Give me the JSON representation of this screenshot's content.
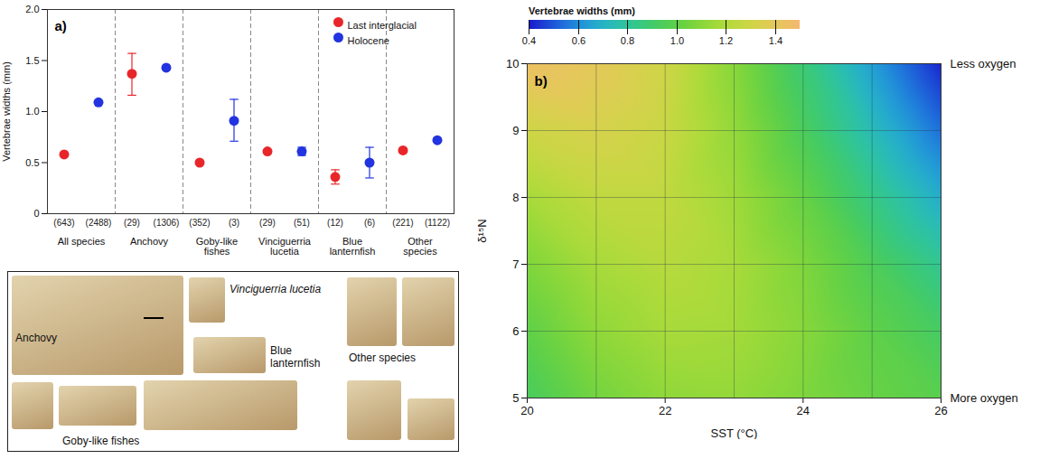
{
  "chart_data": [
    {
      "type": "scatter",
      "panel_label": "a)",
      "categories": [
        "All species",
        "Anchovy",
        "Goby-like fishes",
        "Vinciguerria lucetia",
        "Blue lanternfish",
        "Other species"
      ],
      "ylabel": "Vertebrae widths (mm)",
      "ylim": [
        0,
        2
      ],
      "yticks": [
        0,
        0.5,
        {
          "value": 1,
          "label": "1.0"
        },
        1.5,
        {
          "value": 2,
          "label": "2.0"
        }
      ],
      "legend": "top-right",
      "series": [
        {
          "name": "Last interglacial",
          "color": "#e8262a",
          "marker": "circle",
          "values": [
            0.58,
            1.37,
            0.5,
            0.61,
            0.36,
            0.62
          ],
          "error_low": [
            null,
            1.16,
            null,
            null,
            0.29,
            null
          ],
          "error_high": [
            null,
            1.57,
            null,
            null,
            0.43,
            null
          ],
          "n_labels": [
            "(643)",
            "(29)",
            "(352)",
            "(29)",
            "(12)",
            "(221)"
          ]
        },
        {
          "name": "Holocene",
          "color": "#2233e0",
          "marker": "circle",
          "values": [
            1.09,
            1.43,
            0.91,
            0.61,
            0.5,
            0.72
          ],
          "error_low": [
            null,
            null,
            0.71,
            0.57,
            0.35,
            null
          ],
          "error_high": [
            null,
            null,
            1.12,
            0.65,
            0.65,
            null
          ],
          "n_labels": [
            "(2488)",
            "(1306)",
            "(3)",
            "(51)",
            "(6)",
            "(1122)"
          ]
        }
      ]
    },
    {
      "type": "surface",
      "panel_label": "b)",
      "xlabel": "SST (°C)",
      "ylabel": "δ¹⁵N",
      "zlabel": "Vertebrae widths (mm)",
      "x": [
        20,
        21,
        22,
        23,
        24,
        25,
        26
      ],
      "y": [
        5,
        6,
        7,
        8,
        9,
        10
      ],
      "z": [
        [
          0.93,
          1.05,
          1.12,
          1.13,
          1.08,
          1.02,
          0.98
        ],
        [
          1.0,
          1.12,
          1.18,
          1.17,
          1.1,
          1.0,
          0.92
        ],
        [
          1.08,
          1.18,
          1.22,
          1.18,
          1.08,
          0.95,
          0.82
        ],
        [
          1.18,
          1.25,
          1.25,
          1.16,
          1.02,
          0.85,
          0.68
        ],
        [
          1.3,
          1.33,
          1.28,
          1.13,
          0.94,
          0.74,
          0.54
        ],
        [
          1.45,
          1.4,
          1.3,
          1.1,
          0.88,
          0.64,
          0.42
        ]
      ],
      "xlim": [
        20,
        26
      ],
      "xticks": [
        20,
        22,
        24,
        26
      ],
      "ylim": [
        5,
        10
      ],
      "yticks": [
        5,
        6,
        7,
        8,
        9,
        10
      ],
      "annotations": [
        {
          "text": "Less oxygen",
          "y": 10
        },
        {
          "text": "More oxygen",
          "y": 5
        }
      ],
      "colorbar": {
        "range": [
          0.4,
          1.5
        ],
        "ticks": [
          0.4,
          0.6,
          0.8,
          {
            "value": 1,
            "label": "1.0"
          },
          1.2,
          1.4
        ],
        "colors": [
          "#1a1acc",
          "#22c8f0",
          "#3cc83c",
          "#c8e632",
          "#f5b870"
        ]
      }
    }
  ],
  "photo_panel": {
    "labels": [
      "Anchovy",
      "Vinciguerria lucetia",
      "Blue lanternfish",
      "Other species",
      "Goby-like fishes"
    ]
  }
}
